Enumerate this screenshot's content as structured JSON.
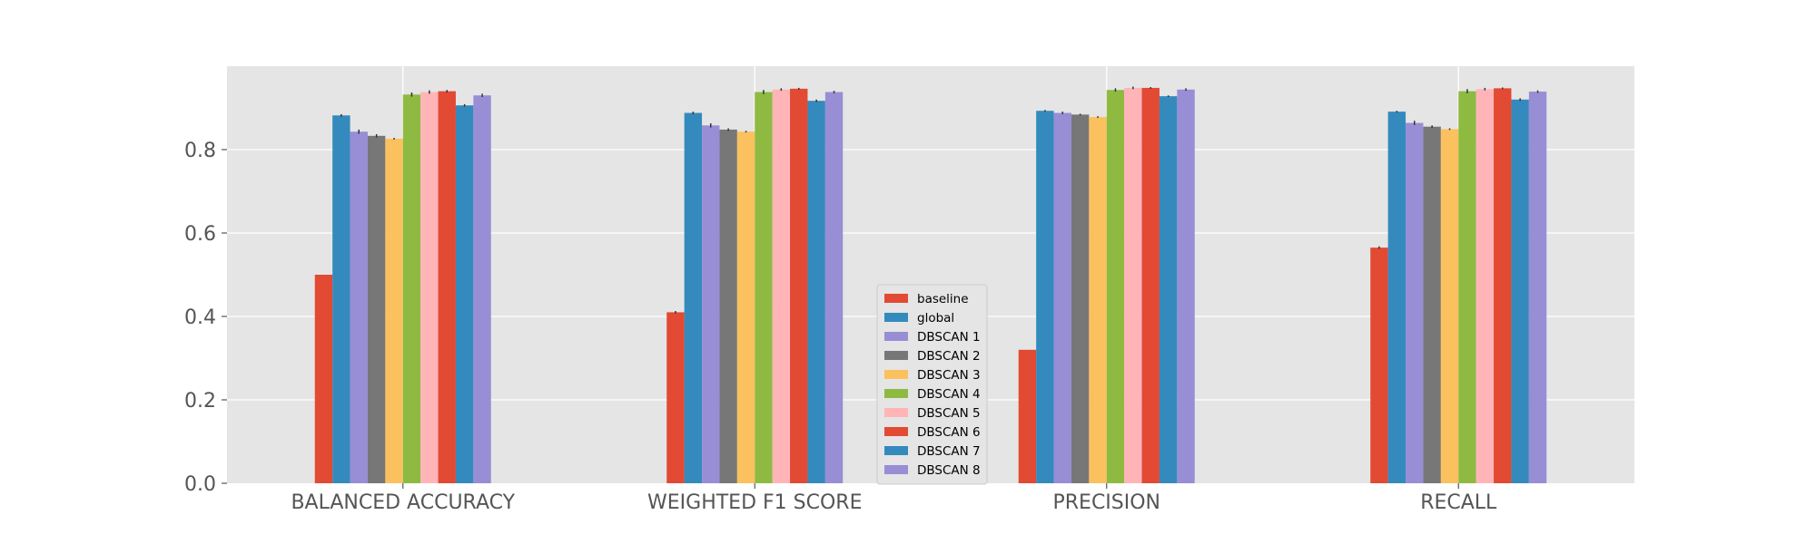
{
  "chart_data": {
    "type": "bar",
    "title": "",
    "xlabel": "",
    "ylabel": "",
    "ylim": [
      0,
      1.0
    ],
    "yticks": [
      0.0,
      0.2,
      0.4,
      0.6,
      0.8
    ],
    "ytick_labels": [
      "0.0",
      "0.2",
      "0.4",
      "0.6",
      "0.8"
    ],
    "grid": true,
    "legend_position": "center",
    "error_bars": true,
    "categories": [
      "BALANCED ACCURACY",
      "WEIGHTED F1 SCORE",
      "PRECISION",
      "RECALL"
    ],
    "series": [
      {
        "name": "baseline",
        "color": "#E24A33",
        "values": [
          0.5,
          0.41,
          0.32,
          0.565
        ],
        "errors": [
          0.0,
          0.003,
          0.0,
          0.003
        ]
      },
      {
        "name": "global",
        "color": "#348ABD",
        "values": [
          0.882,
          0.888,
          0.893,
          0.891
        ],
        "errors": [
          0.003,
          0.003,
          0.002,
          0.002
        ]
      },
      {
        "name": "DBSCAN 1",
        "color": "#988ED5",
        "values": [
          0.843,
          0.858,
          0.888,
          0.864
        ],
        "errors": [
          0.005,
          0.005,
          0.003,
          0.005
        ]
      },
      {
        "name": "DBSCAN 2",
        "color": "#777777",
        "values": [
          0.833,
          0.848,
          0.884,
          0.855
        ],
        "errors": [
          0.004,
          0.003,
          0.002,
          0.003
        ]
      },
      {
        "name": "DBSCAN 3",
        "color": "#FBC15E",
        "values": [
          0.826,
          0.843,
          0.878,
          0.849
        ],
        "errors": [
          0.002,
          0.002,
          0.002,
          0.002
        ]
      },
      {
        "name": "DBSCAN 4",
        "color": "#8EBA42",
        "values": [
          0.932,
          0.938,
          0.943,
          0.94
        ],
        "errors": [
          0.005,
          0.005,
          0.004,
          0.005
        ]
      },
      {
        "name": "DBSCAN 5",
        "color": "#FFB5B8",
        "values": [
          0.938,
          0.944,
          0.948,
          0.945
        ],
        "errors": [
          0.004,
          0.003,
          0.003,
          0.003
        ]
      },
      {
        "name": "DBSCAN 6",
        "color": "#E24A33",
        "values": [
          0.94,
          0.946,
          0.948,
          0.947
        ],
        "errors": [
          0.003,
          0.002,
          0.002,
          0.002
        ]
      },
      {
        "name": "DBSCAN 7",
        "color": "#348ABD",
        "values": [
          0.906,
          0.917,
          0.928,
          0.92
        ],
        "errors": [
          0.003,
          0.003,
          0.002,
          0.003
        ]
      },
      {
        "name": "DBSCAN 8",
        "color": "#988ED5",
        "values": [
          0.93,
          0.938,
          0.944,
          0.939
        ],
        "errors": [
          0.004,
          0.003,
          0.003,
          0.003
        ]
      }
    ]
  }
}
